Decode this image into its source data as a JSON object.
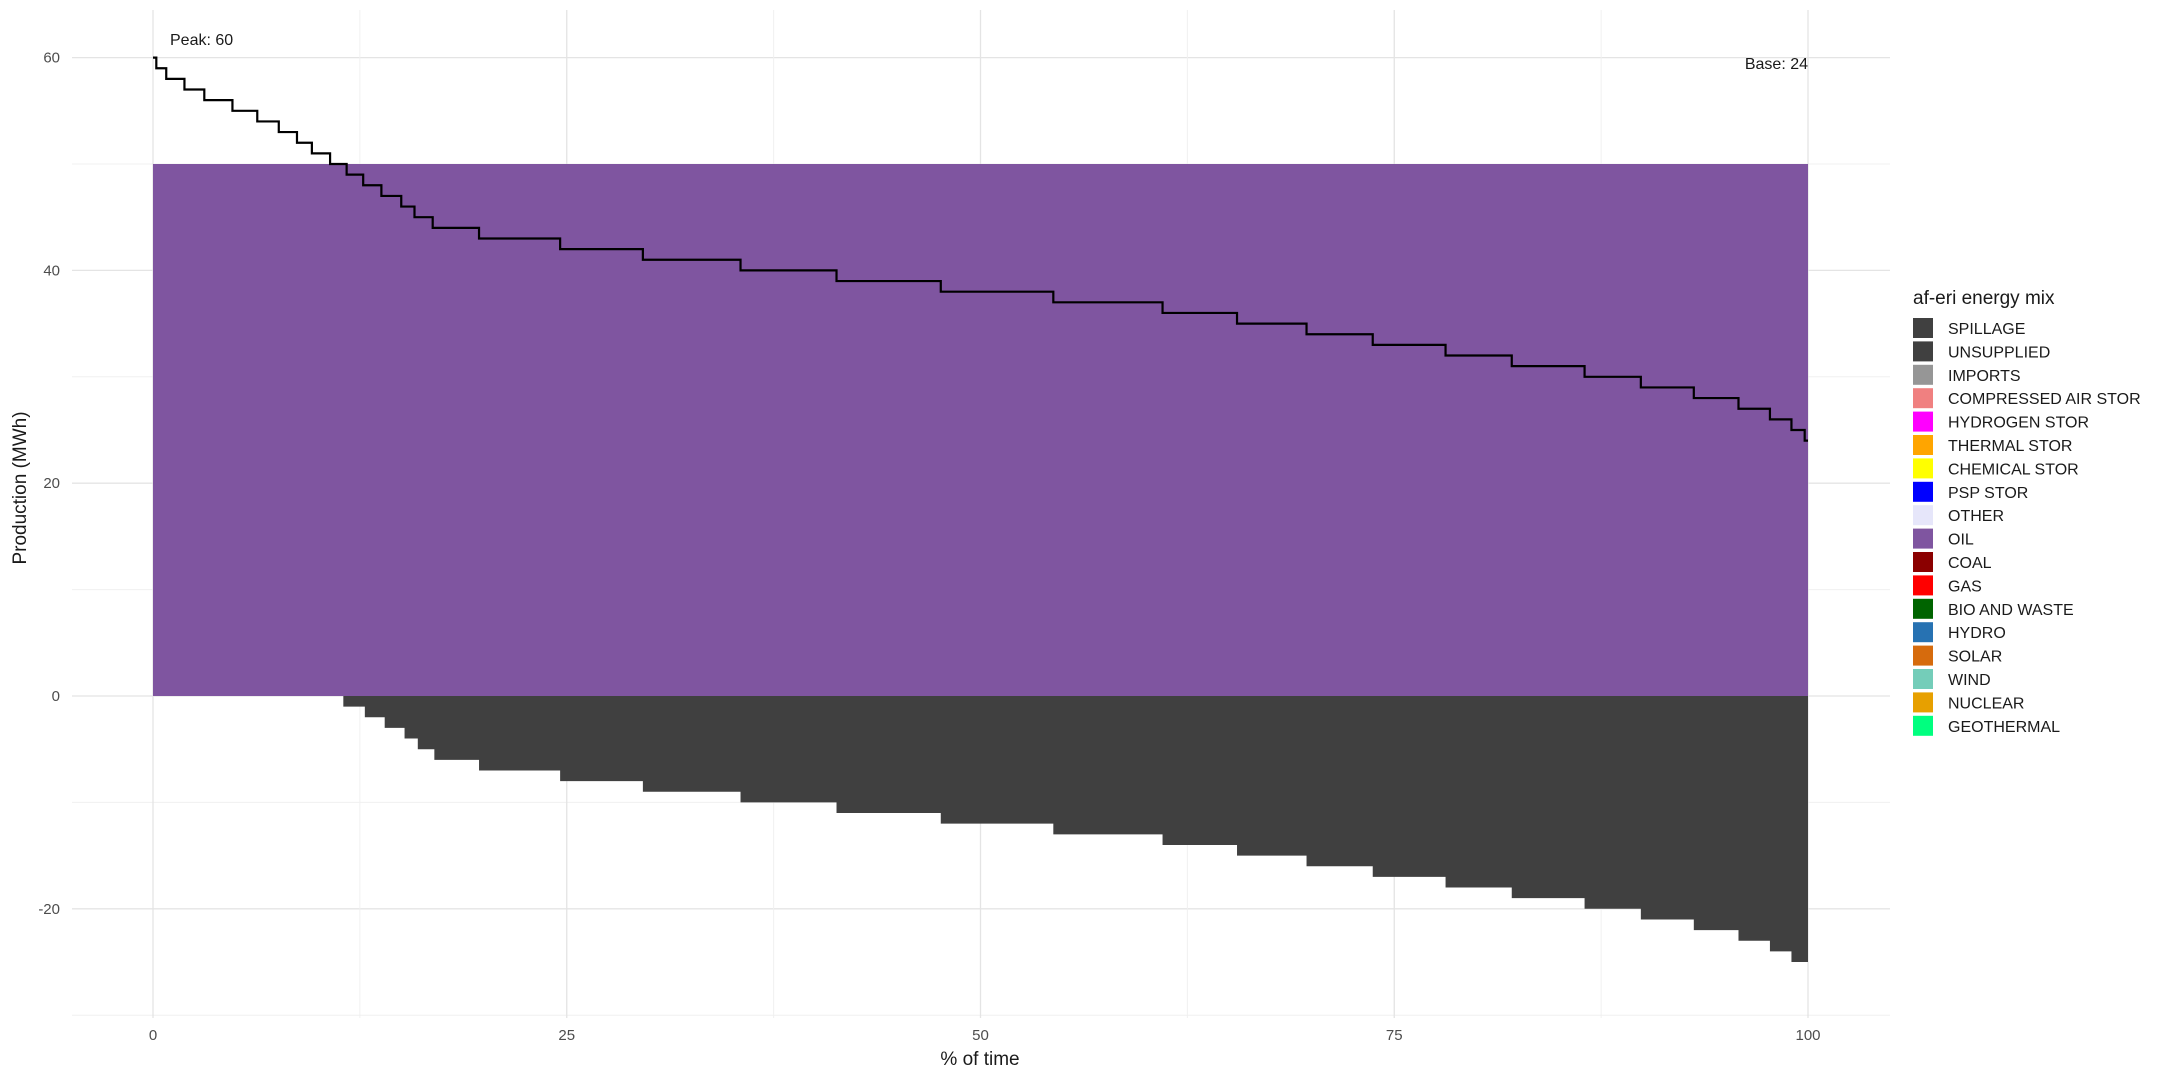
{
  "chart_data": {
    "type": "area",
    "xlabel": "% of time",
    "ylabel": "Production (MWh)",
    "xlim": [
      0,
      100
    ],
    "ylim": [
      -26,
      60
    ],
    "xticks": [
      0,
      25,
      50,
      75,
      100
    ],
    "yticks": [
      -20,
      0,
      20,
      40,
      60
    ],
    "grid": true,
    "legend_position": "right",
    "legend": {
      "title": "af-eri energy mix",
      "entries": [
        {
          "name": "SPILLAGE",
          "color": "#404040"
        },
        {
          "name": "UNSUPPLIED",
          "color": "#404040"
        },
        {
          "name": "IMPORTS",
          "color": "#969696"
        },
        {
          "name": "COMPRESSED AIR STOR",
          "color": "#f08080"
        },
        {
          "name": "HYDROGEN STOR",
          "color": "#ff00ff"
        },
        {
          "name": "THERMAL STOR",
          "color": "#ffa500"
        },
        {
          "name": "CHEMICAL STOR",
          "color": "#ffff00"
        },
        {
          "name": "PSP STOR",
          "color": "#0000ff"
        },
        {
          "name": "OTHER",
          "color": "#e6e6fa"
        },
        {
          "name": "OIL",
          "color": "#7f55a0"
        },
        {
          "name": "COAL",
          "color": "#8b0000"
        },
        {
          "name": "GAS",
          "color": "#ff0000"
        },
        {
          "name": "BIO AND WASTE",
          "color": "#006400"
        },
        {
          "name": "HYDRO",
          "color": "#2772b2"
        },
        {
          "name": "SOLAR",
          "color": "#d66b0d"
        },
        {
          "name": "WIND",
          "color": "#74cdb9"
        },
        {
          "name": "NUCLEAR",
          "color": "#e7a000"
        },
        {
          "name": "GEOTHERMAL",
          "color": "#00ff7f"
        }
      ]
    },
    "annotations": {
      "peak": "Peak: 60",
      "base": "Base: 24"
    },
    "series": [
      {
        "name": "OIL",
        "color": "#7f55a0",
        "kind": "area",
        "x": [
          0,
          100
        ],
        "values": [
          50,
          50
        ]
      },
      {
        "name": "SPILLAGE",
        "color": "#404040",
        "kind": "step-area",
        "x": [
          0,
          11.5,
          12.8,
          14,
          15.2,
          16,
          17,
          19.7,
          24.6,
          29.6,
          35.5,
          41.3,
          47.6,
          54.4,
          61,
          65.5,
          69.7,
          73.7,
          78.1,
          82.1,
          86.5,
          89.9,
          93.1,
          95.8,
          97.7,
          99,
          100
        ],
        "values": [
          0,
          -1,
          -2,
          -3,
          -4,
          -5,
          -6,
          -7,
          -8,
          -9,
          -10,
          -11,
          -12,
          -13,
          -14,
          -15,
          -16,
          -17,
          -18,
          -19,
          -20,
          -21,
          -22,
          -23,
          -24,
          -25,
          -26
        ]
      },
      {
        "name": "",
        "color": "#000000",
        "kind": "step-line",
        "x": [
          0,
          0.2,
          0.8,
          1.9,
          3.1,
          4.8,
          6.3,
          7.6,
          8.7,
          9.6,
          10.7,
          11.7,
          12.7,
          13.8,
          15,
          15.8,
          16.9,
          19.7,
          24.6,
          29.6,
          35.5,
          41.3,
          47.6,
          54.4,
          61,
          65.5,
          69.7,
          73.7,
          78.1,
          82.1,
          86.5,
          89.9,
          93.1,
          95.8,
          97.7,
          99,
          99.8,
          100
        ],
        "values": [
          60,
          59,
          58,
          57,
          56,
          55,
          54,
          53,
          52,
          51,
          50,
          49,
          48,
          47,
          46,
          45,
          44,
          43,
          42,
          41,
          40,
          39,
          38,
          37,
          36,
          35,
          34,
          33,
          32,
          31,
          30,
          29,
          28,
          27,
          26,
          25,
          24,
          24
        ]
      }
    ]
  }
}
